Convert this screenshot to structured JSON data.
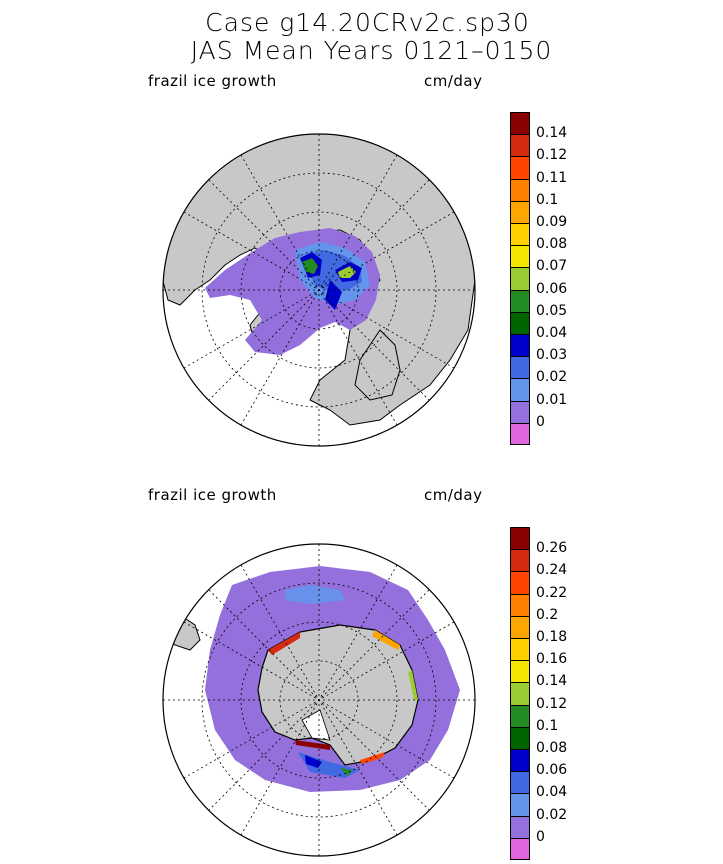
{
  "title_line1": "Case g14.20CRv2c.sp30",
  "title_line2": "JAS Mean    Years 0121–0150",
  "panels": [
    {
      "field": "frazil ice growth",
      "units": "cm/day",
      "hemisphere": "north",
      "colorbar": {
        "labels": [
          "0.14",
          "0.12",
          "0.11",
          "0.1",
          "0.09",
          "0.08",
          "0.07",
          "0.06",
          "0.05",
          "0.04",
          "0.03",
          "0.02",
          "0.01",
          "0"
        ],
        "colors": [
          "#8b0000",
          "#d42a10",
          "#ff4500",
          "#ff7f00",
          "#ffa500",
          "#ffd000",
          "#f2e600",
          "#9acd32",
          "#228b22",
          "#006400",
          "#0000cd",
          "#4169e1",
          "#6495ed",
          "#9370db",
          "#e066e0"
        ]
      }
    },
    {
      "field": "frazil ice growth",
      "units": "cm/day",
      "hemisphere": "south",
      "colorbar": {
        "labels": [
          "0.26",
          "0.24",
          "0.22",
          "0.2",
          "0.18",
          "0.16",
          "0.14",
          "0.12",
          "0.1",
          "0.08",
          "0.06",
          "0.04",
          "0.02",
          "0"
        ],
        "colors": [
          "#8b0000",
          "#d42a10",
          "#ff4500",
          "#ff7f00",
          "#ffa500",
          "#ffd000",
          "#f2e600",
          "#9acd32",
          "#228b22",
          "#006400",
          "#0000cd",
          "#4169e1",
          "#6495ed",
          "#9370db",
          "#e066e0"
        ]
      }
    }
  ]
}
